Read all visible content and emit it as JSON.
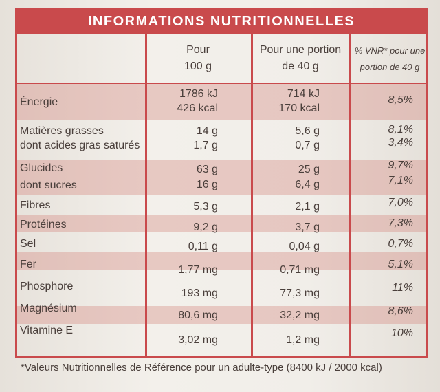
{
  "title": "INFORMATIONS NUTRITIONNELLES",
  "headers": {
    "col1": [
      "Pour",
      "100 g"
    ],
    "col2": [
      "Pour une portion",
      "de 40 g"
    ],
    "col3": [
      "% VNR* pour une",
      "portion de 40 g"
    ]
  },
  "rows": {
    "energie": {
      "name": "Énergie",
      "v1a": "1786 kJ",
      "v1b": "426 kcal",
      "v2a": "714 kJ",
      "v2b": "170 kcal",
      "v3": "8,5%"
    },
    "graisses": {
      "name": "Matières grasses",
      "v1": "14 g",
      "v2": "5,6 g",
      "v3": "8,1%"
    },
    "satures": {
      "name": "dont acides gras saturés",
      "v1": "1,7 g",
      "v2": "0,7 g",
      "v3": "3,4%"
    },
    "glucides": {
      "name": "Glucides",
      "v1": "63 g",
      "v2": "25 g",
      "v3": "9,7%"
    },
    "sucres": {
      "name": "dont sucres",
      "v1": "16 g",
      "v2": "6,4 g",
      "v3": "7,1%"
    },
    "fibres": {
      "name": "Fibres",
      "v1": "5,3 g",
      "v2": "2,1 g",
      "v3": "7,0%"
    },
    "proteines": {
      "name": "Protéines",
      "v1": "9,2 g",
      "v2": "3,7 g",
      "v3": "7,3%"
    },
    "sel": {
      "name": "Sel",
      "v1": "0,11 g",
      "v2": "0,04 g",
      "v3": "0,7%"
    },
    "fer": {
      "name": "Fer",
      "v1": "1,77 mg",
      "v2": "0,71 mg",
      "v3": "5,1%"
    },
    "phosphore": {
      "name": "Phosphore",
      "v1": "193 mg",
      "v2": "77,3 mg",
      "v3": "11%"
    },
    "magnesium": {
      "name": "Magnésium",
      "v1": "80,6 mg",
      "v2": "32,2 mg",
      "v3": "8,6%"
    },
    "vitamine_e": {
      "name": "Vitamine E",
      "v1": "3,02 mg",
      "v2": "1,2 mg",
      "v3": "10%"
    }
  },
  "footnote": "*Valeurs Nutritionnelles de Référence pour un adulte-type (8400 kJ / 2000 kcal)",
  "colors": {
    "accent": "#c94a4c",
    "band": "#e0a79f",
    "text": "#4a3f3b"
  }
}
